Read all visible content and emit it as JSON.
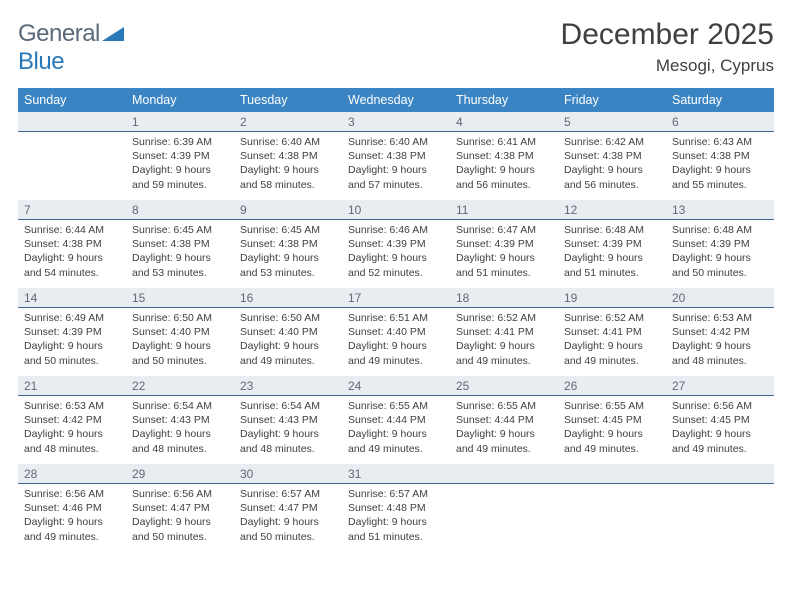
{
  "brand": {
    "part1": "General",
    "part2": "Blue"
  },
  "title": "December 2025",
  "location": "Mesogi, Cyprus",
  "colors": {
    "header_bg": "#3a84c4",
    "header_text": "#ffffff",
    "daynum_bg": "#e9edf1",
    "daynum_border": "#3a6a9a",
    "body_text": "#404040",
    "brand_gray": "#5a6a7a",
    "brand_blue": "#2a7ab9"
  },
  "dow": [
    "Sunday",
    "Monday",
    "Tuesday",
    "Wednesday",
    "Thursday",
    "Friday",
    "Saturday"
  ],
  "start_offset": 1,
  "days": [
    {
      "n": 1,
      "sr": "6:39 AM",
      "ss": "4:39 PM",
      "dl": "9 hours and 59 minutes."
    },
    {
      "n": 2,
      "sr": "6:40 AM",
      "ss": "4:38 PM",
      "dl": "9 hours and 58 minutes."
    },
    {
      "n": 3,
      "sr": "6:40 AM",
      "ss": "4:38 PM",
      "dl": "9 hours and 57 minutes."
    },
    {
      "n": 4,
      "sr": "6:41 AM",
      "ss": "4:38 PM",
      "dl": "9 hours and 56 minutes."
    },
    {
      "n": 5,
      "sr": "6:42 AM",
      "ss": "4:38 PM",
      "dl": "9 hours and 56 minutes."
    },
    {
      "n": 6,
      "sr": "6:43 AM",
      "ss": "4:38 PM",
      "dl": "9 hours and 55 minutes."
    },
    {
      "n": 7,
      "sr": "6:44 AM",
      "ss": "4:38 PM",
      "dl": "9 hours and 54 minutes."
    },
    {
      "n": 8,
      "sr": "6:45 AM",
      "ss": "4:38 PM",
      "dl": "9 hours and 53 minutes."
    },
    {
      "n": 9,
      "sr": "6:45 AM",
      "ss": "4:38 PM",
      "dl": "9 hours and 53 minutes."
    },
    {
      "n": 10,
      "sr": "6:46 AM",
      "ss": "4:39 PM",
      "dl": "9 hours and 52 minutes."
    },
    {
      "n": 11,
      "sr": "6:47 AM",
      "ss": "4:39 PM",
      "dl": "9 hours and 51 minutes."
    },
    {
      "n": 12,
      "sr": "6:48 AM",
      "ss": "4:39 PM",
      "dl": "9 hours and 51 minutes."
    },
    {
      "n": 13,
      "sr": "6:48 AM",
      "ss": "4:39 PM",
      "dl": "9 hours and 50 minutes."
    },
    {
      "n": 14,
      "sr": "6:49 AM",
      "ss": "4:39 PM",
      "dl": "9 hours and 50 minutes."
    },
    {
      "n": 15,
      "sr": "6:50 AM",
      "ss": "4:40 PM",
      "dl": "9 hours and 50 minutes."
    },
    {
      "n": 16,
      "sr": "6:50 AM",
      "ss": "4:40 PM",
      "dl": "9 hours and 49 minutes."
    },
    {
      "n": 17,
      "sr": "6:51 AM",
      "ss": "4:40 PM",
      "dl": "9 hours and 49 minutes."
    },
    {
      "n": 18,
      "sr": "6:52 AM",
      "ss": "4:41 PM",
      "dl": "9 hours and 49 minutes."
    },
    {
      "n": 19,
      "sr": "6:52 AM",
      "ss": "4:41 PM",
      "dl": "9 hours and 49 minutes."
    },
    {
      "n": 20,
      "sr": "6:53 AM",
      "ss": "4:42 PM",
      "dl": "9 hours and 48 minutes."
    },
    {
      "n": 21,
      "sr": "6:53 AM",
      "ss": "4:42 PM",
      "dl": "9 hours and 48 minutes."
    },
    {
      "n": 22,
      "sr": "6:54 AM",
      "ss": "4:43 PM",
      "dl": "9 hours and 48 minutes."
    },
    {
      "n": 23,
      "sr": "6:54 AM",
      "ss": "4:43 PM",
      "dl": "9 hours and 48 minutes."
    },
    {
      "n": 24,
      "sr": "6:55 AM",
      "ss": "4:44 PM",
      "dl": "9 hours and 49 minutes."
    },
    {
      "n": 25,
      "sr": "6:55 AM",
      "ss": "4:44 PM",
      "dl": "9 hours and 49 minutes."
    },
    {
      "n": 26,
      "sr": "6:55 AM",
      "ss": "4:45 PM",
      "dl": "9 hours and 49 minutes."
    },
    {
      "n": 27,
      "sr": "6:56 AM",
      "ss": "4:45 PM",
      "dl": "9 hours and 49 minutes."
    },
    {
      "n": 28,
      "sr": "6:56 AM",
      "ss": "4:46 PM",
      "dl": "9 hours and 49 minutes."
    },
    {
      "n": 29,
      "sr": "6:56 AM",
      "ss": "4:47 PM",
      "dl": "9 hours and 50 minutes."
    },
    {
      "n": 30,
      "sr": "6:57 AM",
      "ss": "4:47 PM",
      "dl": "9 hours and 50 minutes."
    },
    {
      "n": 31,
      "sr": "6:57 AM",
      "ss": "4:48 PM",
      "dl": "9 hours and 51 minutes."
    }
  ],
  "labels": {
    "sunrise": "Sunrise:",
    "sunset": "Sunset:",
    "daylight": "Daylight:"
  }
}
